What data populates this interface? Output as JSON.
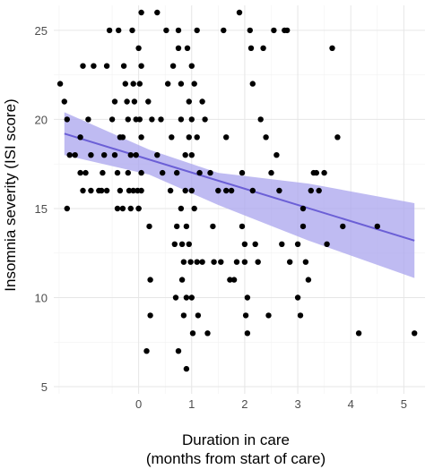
{
  "chart_data": {
    "type": "scatter",
    "title": "",
    "xlabel": "Duration in care",
    "xlabel_line2": "(months from start of care)",
    "ylabel": "Insomnia severity (ISI score)",
    "xlim": [
      -1.6,
      5.4
    ],
    "ylim": [
      4.6,
      26.4
    ],
    "x_ticks": [
      0,
      1,
      2,
      3,
      4,
      5
    ],
    "y_ticks": [
      5,
      10,
      15,
      20,
      25
    ],
    "grid": true,
    "point_color": "#000000",
    "fit_color": "#6b5fd6",
    "band_color": "#a9a4ee",
    "points": [
      [
        -1.48,
        22
      ],
      [
        -1.4,
        21
      ],
      [
        -1.35,
        20
      ],
      [
        -1.3,
        18
      ],
      [
        -1.35,
        15
      ],
      [
        -1.2,
        18
      ],
      [
        -1.1,
        19
      ],
      [
        -1.1,
        17
      ],
      [
        -1.05,
        23
      ],
      [
        -1.0,
        17
      ],
      [
        -1.05,
        16
      ],
      [
        -0.95,
        20
      ],
      [
        -0.9,
        18
      ],
      [
        -0.9,
        16
      ],
      [
        -0.85,
        23
      ],
      [
        -0.75,
        16
      ],
      [
        -0.7,
        16
      ],
      [
        -0.68,
        17
      ],
      [
        -0.65,
        18
      ],
      [
        -0.6,
        23
      ],
      [
        -0.6,
        16
      ],
      [
        -0.55,
        25
      ],
      [
        -0.5,
        20
      ],
      [
        -0.45,
        21
      ],
      [
        -0.45,
        18
      ],
      [
        -0.4,
        15
      ],
      [
        -0.4,
        17
      ],
      [
        -0.38,
        25
      ],
      [
        -0.35,
        19
      ],
      [
        -0.35,
        16
      ],
      [
        -0.3,
        15
      ],
      [
        -0.28,
        23
      ],
      [
        -0.25,
        22
      ],
      [
        -0.22,
        21
      ],
      [
        -0.2,
        20
      ],
      [
        -0.2,
        17
      ],
      [
        -0.18,
        16
      ],
      [
        -0.15,
        15
      ],
      [
        -0.12,
        25
      ],
      [
        -0.1,
        22
      ],
      [
        -0.08,
        21
      ],
      [
        -0.05,
        20
      ],
      [
        -0.05,
        18
      ],
      [
        -0.02,
        16
      ],
      [
        0.0,
        15
      ],
      [
        0.0,
        24
      ],
      [
        0.02,
        22
      ],
      [
        0.02,
        20
      ],
      [
        0.05,
        19
      ],
      [
        0.05,
        17
      ],
      [
        0.05,
        16
      ],
      [
        0.05,
        26
      ],
      [
        0.05,
        23
      ],
      [
        -0.1,
        16
      ],
      [
        -0.3,
        19
      ],
      [
        -0.15,
        18
      ],
      [
        0.0,
        15
      ],
      [
        0.15,
        7
      ],
      [
        0.18,
        21
      ],
      [
        0.22,
        9
      ],
      [
        0.22,
        11
      ],
      [
        0.2,
        14
      ],
      [
        0.25,
        20
      ],
      [
        0.35,
        26
      ],
      [
        0.35,
        18
      ],
      [
        0.42,
        20
      ],
      [
        0.45,
        17
      ],
      [
        0.52,
        25
      ],
      [
        0.55,
        22
      ],
      [
        0.6,
        16
      ],
      [
        0.62,
        19
      ],
      [
        0.65,
        23
      ],
      [
        0.68,
        13
      ],
      [
        0.7,
        10
      ],
      [
        0.72,
        17
      ],
      [
        0.72,
        14
      ],
      [
        0.75,
        25
      ],
      [
        0.75,
        24
      ],
      [
        0.75,
        7
      ],
      [
        0.8,
        22
      ],
      [
        0.8,
        20
      ],
      [
        0.8,
        15
      ],
      [
        0.82,
        13
      ],
      [
        0.82,
        11
      ],
      [
        0.85,
        12
      ],
      [
        0.85,
        9
      ],
      [
        0.88,
        18
      ],
      [
        0.88,
        16
      ],
      [
        0.9,
        14
      ],
      [
        0.9,
        10
      ],
      [
        0.9,
        6
      ],
      [
        0.92,
        24
      ],
      [
        0.95,
        21
      ],
      [
        0.95,
        19
      ],
      [
        0.95,
        13
      ],
      [
        0.98,
        12
      ],
      [
        1.0,
        23
      ],
      [
        1.0,
        20
      ],
      [
        1.0,
        18
      ],
      [
        1.0,
        16
      ],
      [
        1.0,
        10
      ],
      [
        1.02,
        8
      ],
      [
        1.05,
        22
      ],
      [
        1.05,
        15
      ],
      [
        1.1,
        25
      ],
      [
        1.1,
        19
      ],
      [
        1.1,
        12
      ],
      [
        1.12,
        9
      ],
      [
        1.15,
        17
      ],
      [
        1.2,
        21
      ],
      [
        1.2,
        12
      ],
      [
        1.25,
        20
      ],
      [
        1.3,
        8
      ],
      [
        1.35,
        17
      ],
      [
        1.4,
        14
      ],
      [
        1.42,
        12
      ],
      [
        1.5,
        16
      ],
      [
        1.55,
        12
      ],
      [
        1.6,
        25
      ],
      [
        1.65,
        19
      ],
      [
        1.65,
        16
      ],
      [
        1.72,
        11
      ],
      [
        1.75,
        16
      ],
      [
        1.8,
        11
      ],
      [
        1.85,
        12
      ],
      [
        1.9,
        26
      ],
      [
        1.95,
        17
      ],
      [
        1.95,
        14
      ],
      [
        2.0,
        12
      ],
      [
        2.0,
        13
      ],
      [
        2.02,
        9
      ],
      [
        2.05,
        8
      ],
      [
        2.05,
        10
      ],
      [
        2.1,
        25
      ],
      [
        2.12,
        24
      ],
      [
        2.15,
        22
      ],
      [
        2.15,
        16
      ],
      [
        2.2,
        13
      ],
      [
        2.25,
        12
      ],
      [
        2.3,
        20
      ],
      [
        2.35,
        24
      ],
      [
        2.4,
        19
      ],
      [
        2.45,
        9
      ],
      [
        2.5,
        17
      ],
      [
        2.55,
        25
      ],
      [
        2.6,
        18
      ],
      [
        2.65,
        16
      ],
      [
        2.7,
        13
      ],
      [
        2.75,
        25
      ],
      [
        2.8,
        25
      ],
      [
        2.85,
        12
      ],
      [
        3.0,
        13
      ],
      [
        3.0,
        10
      ],
      [
        3.05,
        9
      ],
      [
        3.1,
        15
      ],
      [
        3.1,
        14
      ],
      [
        3.15,
        12
      ],
      [
        3.2,
        11
      ],
      [
        3.25,
        16
      ],
      [
        3.3,
        17
      ],
      [
        3.35,
        17
      ],
      [
        3.4,
        16
      ],
      [
        3.5,
        17
      ],
      [
        3.55,
        13
      ],
      [
        3.65,
        24
      ],
      [
        3.75,
        19
      ],
      [
        3.85,
        14
      ],
      [
        4.15,
        8
      ],
      [
        4.5,
        14
      ],
      [
        5.2,
        8
      ]
    ],
    "fit_line": {
      "x": [
        -1.4,
        5.2
      ],
      "y": [
        19.2,
        13.2
      ]
    },
    "confidence_band": {
      "x": [
        -1.4,
        0.2,
        1.5,
        3.2,
        5.2
      ],
      "upper": [
        20.4,
        18.3,
        17.0,
        16.4,
        15.3
      ],
      "lower": [
        18.0,
        16.9,
        15.2,
        13.2,
        11.1
      ]
    }
  }
}
